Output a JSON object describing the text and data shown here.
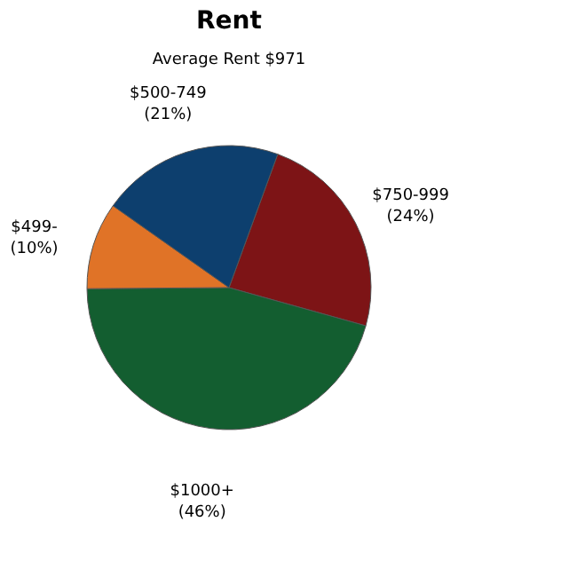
{
  "chart_data": {
    "type": "pie",
    "title": "Rent",
    "subtitle": "Average Rent  $971",
    "categories": [
      "$750-999",
      "$1000+",
      "$499-",
      "$500-749"
    ],
    "values": [
      24,
      46,
      10,
      21
    ],
    "value_labels": [
      "(24%)",
      "(46%)",
      "(10%)",
      "(21%)"
    ],
    "colors": [
      "#7d1416",
      "#135e30",
      "#e07327",
      "#0d3f6e"
    ],
    "legend": false
  }
}
